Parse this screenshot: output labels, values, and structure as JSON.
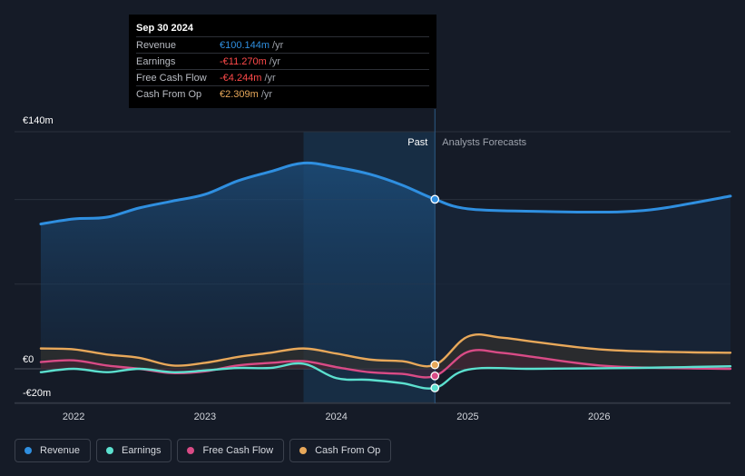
{
  "tooltip": {
    "date": "Sep 30 2024",
    "rows": [
      {
        "label": "Revenue",
        "value": "€100.144m",
        "unit": "/yr",
        "color": "#2f8fe0"
      },
      {
        "label": "Earnings",
        "value": "-€11.270m",
        "unit": "/yr",
        "color": "#ff4a4a"
      },
      {
        "label": "Free Cash Flow",
        "value": "-€4.244m",
        "unit": "/yr",
        "color": "#ff4a4a"
      },
      {
        "label": "Cash From Op",
        "value": "€2.309m",
        "unit": "/yr",
        "color": "#e8a85a"
      }
    ]
  },
  "labels": {
    "past": "Past",
    "forecast": "Analysts Forecasts"
  },
  "chart_data": {
    "type": "line",
    "ylim": [
      -20,
      140
    ],
    "y_ticks": [
      {
        "v": 140,
        "label": "€140m"
      },
      {
        "v": 0,
        "label": "€0"
      },
      {
        "v": -20,
        "label": "-€20m"
      }
    ],
    "x_ticks": [
      {
        "x": 2022.0,
        "label": "2022"
      },
      {
        "x": 2023.0,
        "label": "2023"
      },
      {
        "x": 2024.0,
        "label": "2024"
      },
      {
        "x": 2025.0,
        "label": "2025"
      },
      {
        "x": 2026.0,
        "label": "2026"
      }
    ],
    "xlim": [
      2021.55,
      2027.0
    ],
    "past_end": 2024.75,
    "highlight_start": 2023.75,
    "series": [
      {
        "name": "Revenue",
        "color": "#2f8fe0",
        "points": [
          [
            2021.75,
            85.5
          ],
          [
            2022.0,
            88.5
          ],
          [
            2022.25,
            89.5
          ],
          [
            2022.5,
            95
          ],
          [
            2022.75,
            99
          ],
          [
            2023.0,
            103
          ],
          [
            2023.25,
            111
          ],
          [
            2023.5,
            116.5
          ],
          [
            2023.75,
            121.5
          ],
          [
            2024.0,
            119
          ],
          [
            2024.25,
            115
          ],
          [
            2024.5,
            108.5
          ],
          [
            2024.75,
            100.1
          ],
          [
            2025.0,
            94.5
          ],
          [
            2025.5,
            93
          ],
          [
            2026.0,
            92.5
          ],
          [
            2026.25,
            93
          ],
          [
            2026.5,
            95
          ],
          [
            2027.0,
            102
          ]
        ]
      },
      {
        "name": "Earnings",
        "color": "#5ce0cf",
        "points": [
          [
            2021.75,
            -2
          ],
          [
            2022.0,
            0
          ],
          [
            2022.25,
            -2
          ],
          [
            2022.5,
            0
          ],
          [
            2022.75,
            -2
          ],
          [
            2023.0,
            -1
          ],
          [
            2023.25,
            0.5
          ],
          [
            2023.5,
            0.5
          ],
          [
            2023.75,
            3
          ],
          [
            2024.0,
            -5.5
          ],
          [
            2024.25,
            -6.5
          ],
          [
            2024.5,
            -8.5
          ],
          [
            2024.75,
            -11.3
          ],
          [
            2025.0,
            -0.5
          ],
          [
            2025.5,
            0
          ],
          [
            2026.0,
            0.3
          ],
          [
            2026.5,
            0.8
          ],
          [
            2027.0,
            1.5
          ]
        ]
      },
      {
        "name": "Free Cash Flow",
        "color": "#d94b86",
        "points": [
          [
            2021.75,
            4
          ],
          [
            2022.0,
            5
          ],
          [
            2022.25,
            2
          ],
          [
            2022.5,
            0
          ],
          [
            2022.75,
            -2.5
          ],
          [
            2023.0,
            -1.5
          ],
          [
            2023.25,
            2
          ],
          [
            2023.5,
            3.5
          ],
          [
            2023.75,
            4.5
          ],
          [
            2024.0,
            1
          ],
          [
            2024.25,
            -2
          ],
          [
            2024.5,
            -3
          ],
          [
            2024.75,
            -4.2
          ],
          [
            2025.0,
            10
          ],
          [
            2025.25,
            9.5
          ],
          [
            2025.5,
            7
          ],
          [
            2026.0,
            2
          ],
          [
            2026.5,
            0.5
          ],
          [
            2027.0,
            0
          ]
        ]
      },
      {
        "name": "Cash From Op",
        "color": "#e8a85a",
        "points": [
          [
            2021.75,
            12
          ],
          [
            2022.0,
            11.5
          ],
          [
            2022.25,
            8.5
          ],
          [
            2022.5,
            6.5
          ],
          [
            2022.75,
            2
          ],
          [
            2023.0,
            3.5
          ],
          [
            2023.25,
            7
          ],
          [
            2023.5,
            9.5
          ],
          [
            2023.75,
            12
          ],
          [
            2024.0,
            9
          ],
          [
            2024.25,
            5.5
          ],
          [
            2024.5,
            4.5
          ],
          [
            2024.75,
            2.3
          ],
          [
            2025.0,
            19
          ],
          [
            2025.25,
            18.5
          ],
          [
            2025.5,
            16
          ],
          [
            2026.0,
            11.5
          ],
          [
            2026.5,
            10
          ],
          [
            2027.0,
            9.5
          ]
        ]
      }
    ]
  },
  "legend": [
    {
      "label": "Revenue",
      "color": "#2f8fe0"
    },
    {
      "label": "Earnings",
      "color": "#5ce0cf"
    },
    {
      "label": "Free Cash Flow",
      "color": "#d94b86"
    },
    {
      "label": "Cash From Op",
      "color": "#e8a85a"
    }
  ]
}
